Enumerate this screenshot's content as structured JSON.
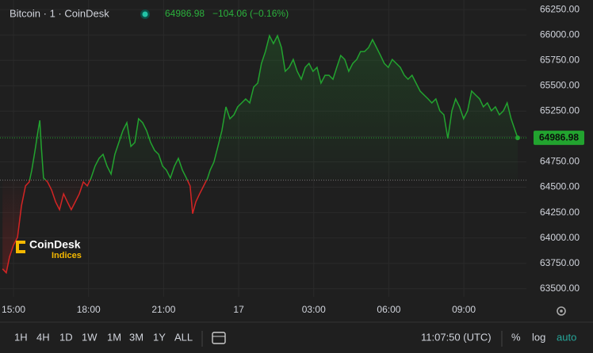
{
  "header": {
    "title": "Bitcoin · 1 · CoinDesk",
    "price": "64986.98",
    "change": "−104.06 (−0.16%)"
  },
  "logo": {
    "name": "CoinDesk",
    "sub": "Indices"
  },
  "toolbar": {
    "ranges": [
      "1H",
      "4H",
      "1D",
      "1W",
      "1M",
      "3M",
      "1Y",
      "ALL"
    ],
    "time": "11:07:50 (UTC)",
    "options": [
      "%",
      "log",
      "auto"
    ]
  },
  "chart_data": {
    "type": "line",
    "color": "#22a32f",
    "down_color": "#d42424",
    "baseline": 64570,
    "grid": true,
    "xlim": [
      -0.54,
      20.5
    ],
    "ylim": [
      63420,
      66345
    ],
    "xticks": [
      {
        "value": 0,
        "label": "15:00"
      },
      {
        "value": 3,
        "label": "18:00"
      },
      {
        "value": 6,
        "label": "21:00"
      },
      {
        "value": 9,
        "label": "17"
      },
      {
        "value": 12,
        "label": "03:00"
      },
      {
        "value": 15,
        "label": "06:00"
      },
      {
        "value": 18,
        "label": "09:00"
      }
    ],
    "yticks": [
      {
        "value": 63500,
        "label": "63500.00"
      },
      {
        "value": 63750,
        "label": "63750.00"
      },
      {
        "value": 64000,
        "label": "64000.00"
      },
      {
        "value": 64250,
        "label": "64250.00"
      },
      {
        "value": 64500,
        "label": "64500.00"
      },
      {
        "value": 64750,
        "label": "64750.00"
      },
      {
        "value": 65000,
        "label": "65000.00"
      },
      {
        "value": 65250,
        "label": "65250.00"
      },
      {
        "value": 65500,
        "label": "65500.00"
      },
      {
        "value": 65750,
        "label": "65750.00"
      },
      {
        "value": 66000,
        "label": "66000.00"
      },
      {
        "value": 66250,
        "label": "66250.00"
      }
    ],
    "x": [
      -0.44,
      -0.29,
      -0.16,
      0,
      0.16,
      0.32,
      0.48,
      0.63,
      0.73,
      0.86,
      0.98,
      1.05,
      1.11,
      1.2,
      1.36,
      1.52,
      1.68,
      1.84,
      2.0,
      2.15,
      2.31,
      2.47,
      2.63,
      2.79,
      2.95,
      3.1,
      3.26,
      3.42,
      3.58,
      3.74,
      3.9,
      4.05,
      4.21,
      4.37,
      4.53,
      4.69,
      4.85,
      5.0,
      5.16,
      5.32,
      5.48,
      5.64,
      5.8,
      5.96,
      6.11,
      6.27,
      6.43,
      6.59,
      6.75,
      6.91,
      7.06,
      7.16,
      7.29,
      7.44,
      7.6,
      7.76,
      7.86,
      8.01,
      8.17,
      8.33,
      8.49,
      8.65,
      8.81,
      8.96,
      9.12,
      9.28,
      9.44,
      9.6,
      9.76,
      9.91,
      10.07,
      10.23,
      10.39,
      10.55,
      10.71,
      10.86,
      11.02,
      11.18,
      11.34,
      11.5,
      11.66,
      11.81,
      11.97,
      12.13,
      12.29,
      12.45,
      12.61,
      12.77,
      12.92,
      13.08,
      13.24,
      13.4,
      13.56,
      13.72,
      13.87,
      14.03,
      14.19,
      14.35,
      14.51,
      14.67,
      14.82,
      14.98,
      15.14,
      15.3,
      15.46,
      15.62,
      15.77,
      15.93,
      16.09,
      16.25,
      16.41,
      16.57,
      16.72,
      16.88,
      17.04,
      17.2,
      17.36,
      17.52,
      17.67,
      17.83,
      17.99,
      18.15,
      18.31,
      18.47,
      18.63,
      18.78,
      18.94,
      19.1,
      19.26,
      19.42,
      19.58,
      19.73,
      19.89,
      20.05,
      20.15
    ],
    "values": [
      63695,
      63656,
      63812,
      63929,
      64006,
      64318,
      64513,
      64552,
      64669,
      64863,
      65058,
      65159,
      64902,
      64591,
      64552,
      64474,
      64357,
      64279,
      64435,
      64357,
      64279,
      64357,
      64435,
      64552,
      64513,
      64591,
      64708,
      64785,
      64824,
      64708,
      64630,
      64824,
      64941,
      65058,
      65136,
      64902,
      64941,
      65175,
      65136,
      65058,
      64941,
      64863,
      64824,
      64708,
      64669,
      64591,
      64708,
      64785,
      64669,
      64591,
      64513,
      64240,
      64357,
      64435,
      64513,
      64591,
      64669,
      64747,
      64902,
      65058,
      65292,
      65175,
      65214,
      65292,
      65331,
      65370,
      65331,
      65487,
      65526,
      65720,
      65837,
      65993,
      65915,
      65993,
      65876,
      65642,
      65681,
      65759,
      65642,
      65564,
      65681,
      65720,
      65642,
      65681,
      65526,
      65603,
      65603,
      65564,
      65681,
      65798,
      65759,
      65642,
      65720,
      65759,
      65837,
      65837,
      65876,
      65954,
      65876,
      65798,
      65720,
      65681,
      65759,
      65720,
      65681,
      65603,
      65564,
      65603,
      65526,
      65448,
      65409,
      65370,
      65331,
      65370,
      65253,
      65214,
      64980,
      65253,
      65370,
      65292,
      65175,
      65253,
      65448,
      65409,
      65370,
      65292,
      65331,
      65253,
      65292,
      65214,
      65253,
      65331,
      65175,
      65058,
      64986.98
    ]
  }
}
